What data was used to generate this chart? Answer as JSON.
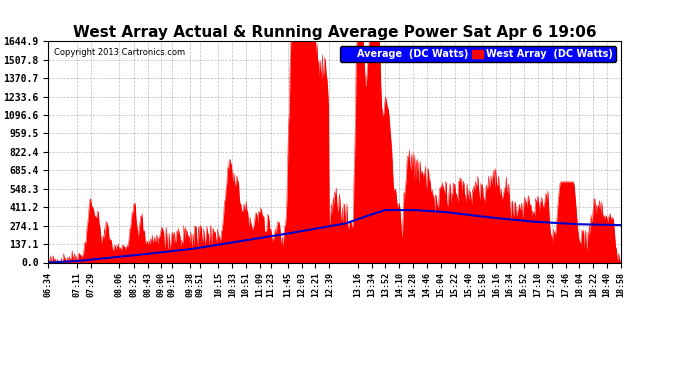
{
  "title": "West Array Actual & Running Average Power Sat Apr 6 19:06",
  "copyright": "Copyright 2013 Cartronics.com",
  "legend_labels": [
    "Average  (DC Watts)",
    "West Array  (DC Watts)"
  ],
  "y_ticks": [
    0.0,
    137.1,
    274.1,
    411.2,
    548.3,
    685.4,
    822.4,
    959.5,
    1096.6,
    1233.6,
    1370.7,
    1507.8,
    1644.9
  ],
  "y_max": 1644.9,
  "background_color": "#ffffff",
  "plot_bg_color": "#ffffff",
  "grid_color": "#aaaaaa",
  "fill_color": "#ff0000",
  "avg_line_color": "#0000cc",
  "title_fontsize": 11,
  "x_start_minutes": 394,
  "x_end_minutes": 1138,
  "x_tick_labels": [
    "06:34",
    "07:11",
    "07:29",
    "08:06",
    "08:25",
    "08:43",
    "09:00",
    "09:15",
    "09:38",
    "09:51",
    "10:15",
    "10:33",
    "10:51",
    "11:09",
    "11:23",
    "11:45",
    "12:03",
    "12:21",
    "12:39",
    "13:16",
    "13:34",
    "13:52",
    "14:10",
    "14:28",
    "14:46",
    "15:04",
    "15:22",
    "15:40",
    "15:58",
    "16:16",
    "16:34",
    "16:52",
    "17:10",
    "17:28",
    "17:46",
    "18:04",
    "18:22",
    "18:40",
    "18:58"
  ],
  "x_tick_minutes": [
    394,
    431,
    449,
    486,
    505,
    523,
    540,
    555,
    578,
    591,
    615,
    633,
    651,
    669,
    683,
    705,
    723,
    741,
    759,
    796,
    814,
    832,
    850,
    868,
    886,
    904,
    922,
    940,
    958,
    976,
    994,
    1012,
    1030,
    1048,
    1066,
    1084,
    1102,
    1120,
    1138
  ],
  "avg_line_x": [
    394,
    430,
    500,
    580,
    640,
    700,
    740,
    780,
    810,
    832,
    870,
    910,
    960,
    1020,
    1080,
    1138
  ],
  "avg_line_y": [
    0,
    10,
    50,
    100,
    155,
    210,
    250,
    290,
    350,
    390,
    390,
    375,
    340,
    305,
    285,
    278
  ]
}
